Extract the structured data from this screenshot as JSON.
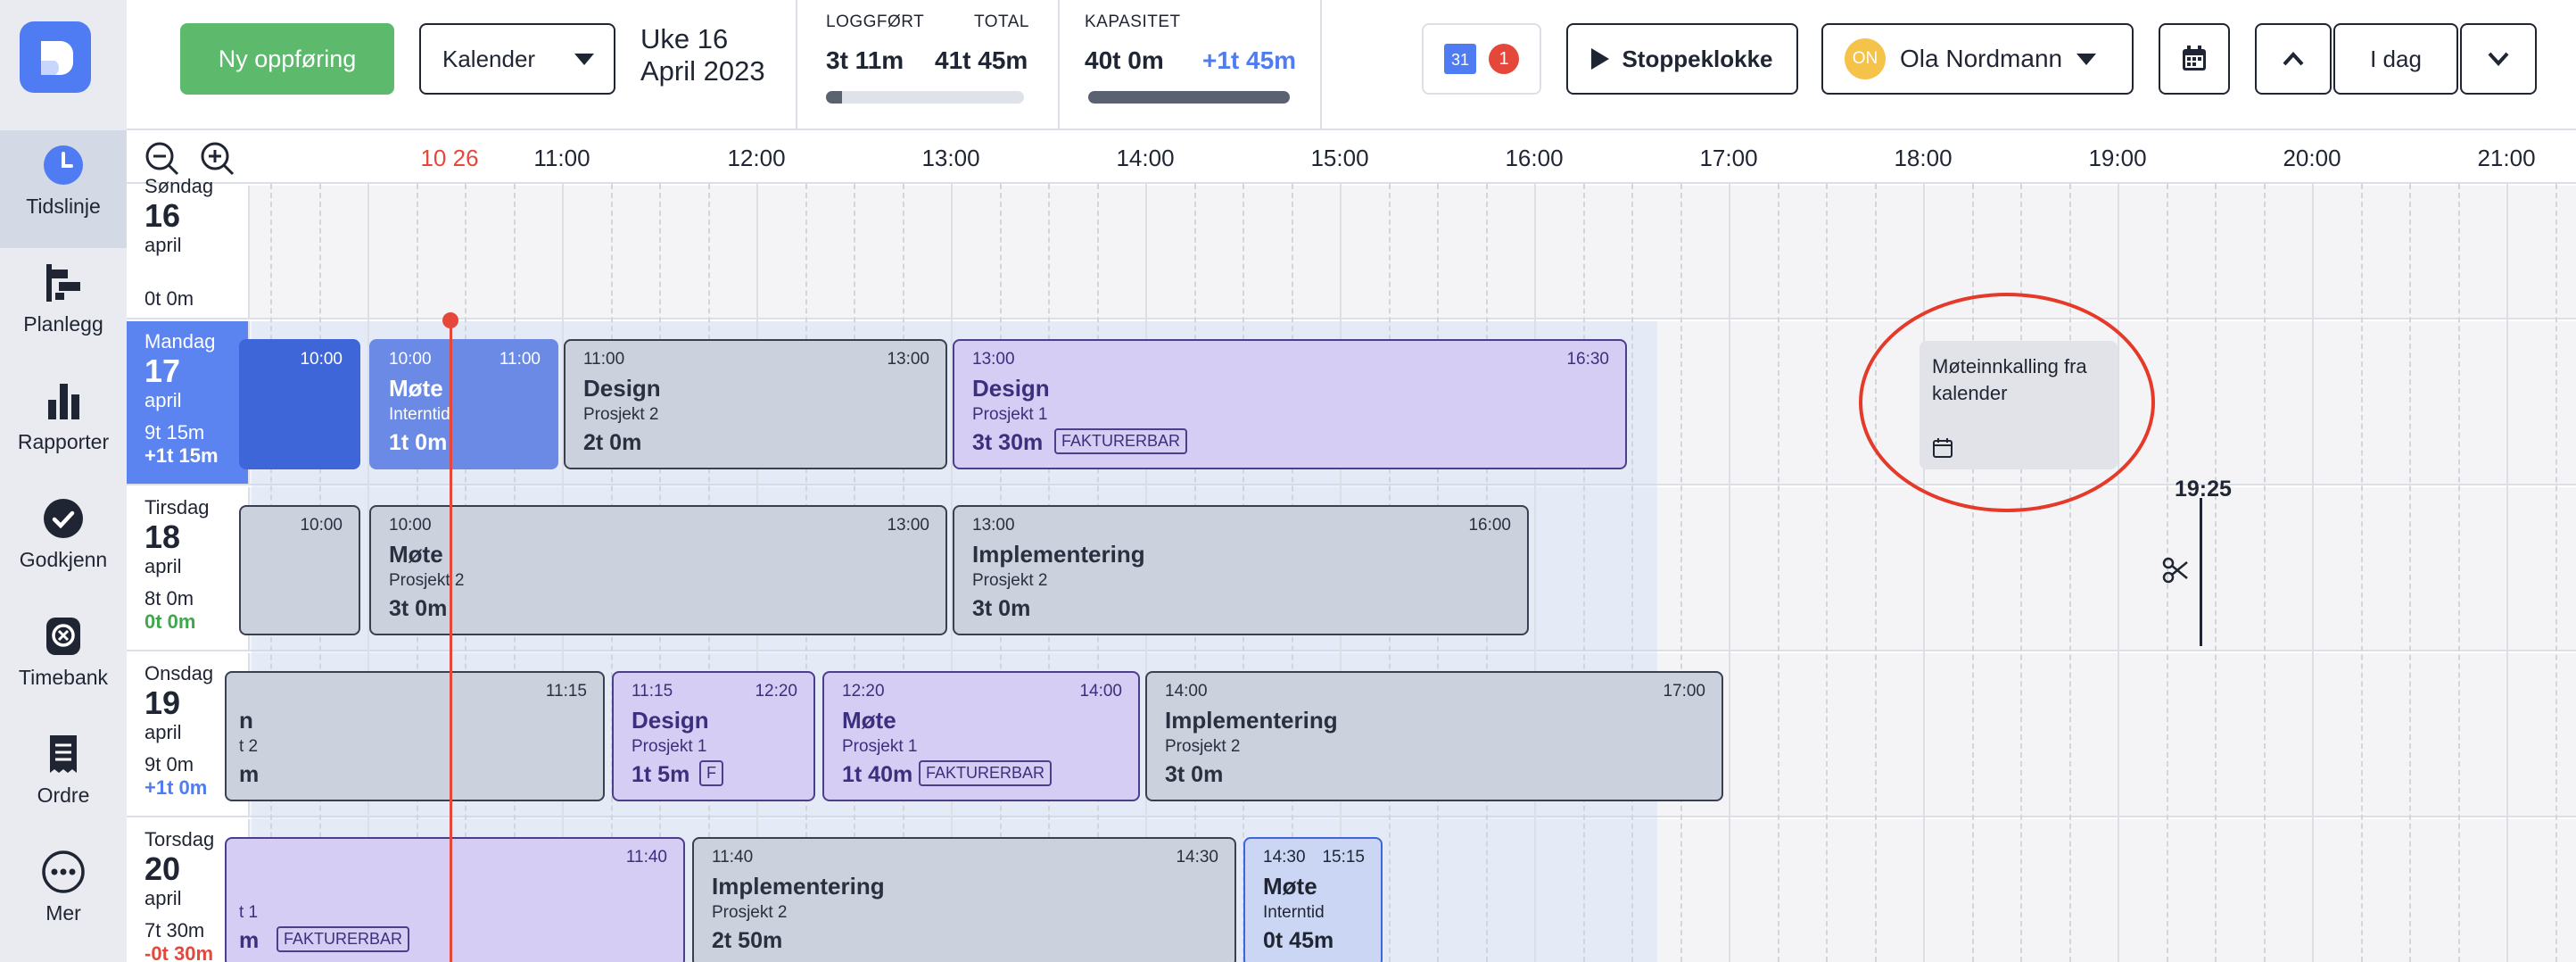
{
  "sidebar": {
    "items": [
      {
        "label": "Tidslinje",
        "icon": "clock-icon"
      },
      {
        "label": "Planlegg",
        "icon": "planner-icon"
      },
      {
        "label": "Rapporter",
        "icon": "bar-chart-icon"
      },
      {
        "label": "Godkjenn",
        "icon": "check-circle-icon"
      },
      {
        "label": "Timebank",
        "icon": "timebank-icon"
      },
      {
        "label": "Ordre",
        "icon": "receipt-icon"
      },
      {
        "label": "Mer",
        "icon": "more-icon"
      }
    ]
  },
  "topbar": {
    "new_entry": "Ny oppføring",
    "view_select": "Kalender",
    "week": "Uke 16",
    "month_year": "April 2023",
    "logged_label": "LOGGFØRT",
    "total_label": "TOTAL",
    "logged_value": "3t 11m",
    "total_value": "41t 45m",
    "logged_progress": 0.08,
    "capacity_label": "KAPASITET",
    "capacity_value": "40t 0m",
    "capacity_extra": "+1t 45m",
    "capacity_progress": 1.0,
    "calendar_badge": "31",
    "notification_count": "1",
    "stopwatch": "Stoppeklokke",
    "user_initials": "ON",
    "user_name": "Ola Nordmann",
    "today": "I dag"
  },
  "timeline": {
    "current_time": "10 26",
    "hours": [
      "11:00",
      "12:00",
      "13:00",
      "14:00",
      "15:00",
      "16:00",
      "17:00",
      "18:00",
      "19:00",
      "20:00",
      "21:00"
    ],
    "days": [
      {
        "name": "Søndag",
        "date": "16",
        "month": "april",
        "hours": "0t 0m",
        "extra": ""
      },
      {
        "name": "Mandag",
        "date": "17",
        "month": "april",
        "hours": "9t 15m",
        "extra": "+1t 15m"
      },
      {
        "name": "Tirsdag",
        "date": "18",
        "month": "april",
        "hours": "8t 0m",
        "extra": "0t 0m"
      },
      {
        "name": "Onsdag",
        "date": "19",
        "month": "april",
        "hours": "9t 0m",
        "extra": "+1t 0m"
      },
      {
        "name": "Torsdag",
        "date": "20",
        "month": "april",
        "hours": "7t 30m",
        "extra": "-0t 30m"
      }
    ],
    "events": {
      "mon_a": {
        "end": "10:00"
      },
      "mon_b": {
        "start": "10:00",
        "end": "11:00",
        "name": "Møte",
        "project": "Interntid",
        "duration": "1t 0m"
      },
      "mon_c": {
        "start": "11:00",
        "end": "13:00",
        "name": "Design",
        "project": "Prosjekt 2",
        "duration": "2t 0m"
      },
      "mon_d": {
        "start": "13:00",
        "end": "16:30",
        "name": "Design",
        "project": "Prosjekt 1",
        "duration": "3t 30m",
        "tag": "FAKTURERBAR"
      },
      "mon_invite": {
        "name": "Møteinnkalling fra kalender"
      },
      "tue_a": {
        "end": "10:00"
      },
      "tue_b": {
        "start": "10:00",
        "end": "13:00",
        "name": "Møte",
        "project": "Prosjekt 2",
        "duration": "3t 0m"
      },
      "tue_c": {
        "start": "13:00",
        "end": "16:00",
        "name": "Implementering",
        "project": "Prosjekt 2",
        "duration": "3t 0m"
      },
      "tue_cut_time": "19:25",
      "wed_a": {
        "end": "11:15",
        "name": "n",
        "project": "t 2",
        "duration": "m"
      },
      "wed_b": {
        "start": "11:15",
        "end": "12:20",
        "name": "Design",
        "project": "Prosjekt 1",
        "duration": "1t 5m",
        "tag": "F"
      },
      "wed_c": {
        "start": "12:20",
        "end": "14:00",
        "name": "Møte",
        "project": "Prosjekt 1",
        "duration": "1t 40m",
        "tag": "FAKTURERBAR"
      },
      "wed_d": {
        "start": "14:00",
        "end": "17:00",
        "name": "Implementering",
        "project": "Prosjekt 2",
        "duration": "3t 0m"
      },
      "thu_a": {
        "end": "11:40",
        "project": "t 1",
        "duration": "m",
        "tag": "FAKTURERBAR"
      },
      "thu_b": {
        "start": "11:40",
        "end": "14:30",
        "name": "Implementering",
        "project": "Prosjekt 2",
        "duration": "2t 50m"
      },
      "thu_c": {
        "start": "14:30",
        "end": "15:15",
        "name": "Møte",
        "project": "Interntid",
        "duration": "0t 45m"
      }
    }
  },
  "colors": {
    "accent": "#5b84f1",
    "green": "#5dba6d",
    "now_line": "#e5483b",
    "annotation": "#e53a2a"
  }
}
